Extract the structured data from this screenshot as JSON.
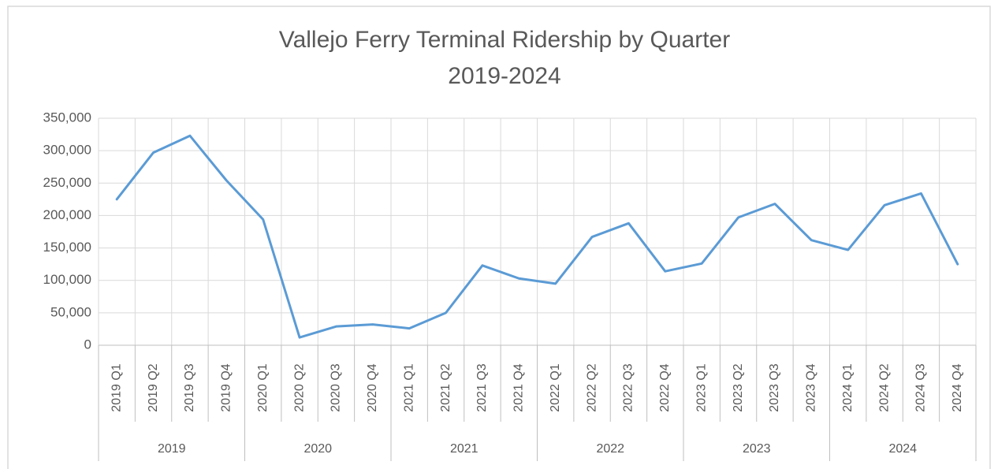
{
  "chart_data": {
    "type": "line",
    "title": "Vallejo Ferry Terminal Ridership by Quarter",
    "subtitle": "2019-2024",
    "categories": [
      "2019 Q1",
      "2019 Q2",
      "2019 Q3",
      "2019 Q4",
      "2020 Q1",
      "2020 Q2",
      "2020 Q3",
      "2020 Q4",
      "2021 Q1",
      "2021 Q2",
      "2021 Q3",
      "2021 Q4",
      "2022 Q1",
      "2022 Q2",
      "2022 Q3",
      "2022 Q4",
      "2023 Q1",
      "2023 Q2",
      "2023 Q3",
      "2023 Q4",
      "2024 Q1",
      "2024 Q2",
      "2024 Q3",
      "2024 Q4"
    ],
    "groups": [
      "2019",
      "2020",
      "2021",
      "2022",
      "2023",
      "2024"
    ],
    "values": [
      225000,
      297000,
      323000,
      254000,
      194000,
      12000,
      29000,
      32000,
      26000,
      50000,
      123000,
      103000,
      95000,
      167000,
      188000,
      114000,
      126000,
      197000,
      218000,
      162000,
      147000,
      216000,
      234000,
      125000
    ],
    "color": "#5b9bd5",
    "ylim": [
      0,
      350000
    ],
    "yticks": [
      0,
      {
        "value": 50000,
        "label": "50,000"
      },
      {
        "value": 100000,
        "label": "100,000"
      },
      {
        "value": 150000,
        "label": "150,000"
      },
      {
        "value": 200000,
        "label": "200,000"
      },
      {
        "value": 250000,
        "label": "250,000"
      },
      {
        "value": 300000,
        "label": "300,000"
      },
      {
        "value": 350000,
        "label": "350,000"
      }
    ],
    "grid": true
  }
}
